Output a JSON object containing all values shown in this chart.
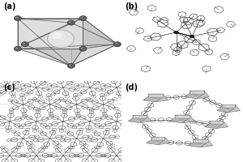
{
  "figure_width": 3.0,
  "figure_height": 2.0,
  "dpi": 100,
  "background_color": "#ffffff",
  "panel_labels": [
    "(a)",
    "(b)",
    "(c)",
    "(d)"
  ],
  "panel_label_fontsize": 7,
  "panel_label_bold": true,
  "border_color": "#bbbbbb",
  "label_color": "#000000",
  "node_color_dark": "#606060",
  "node_color_light": "#d0d0d0",
  "face_color_light": "#dedede",
  "face_color_mid": "#c8c8c8",
  "face_color_dark": "#b0b0b0",
  "line_color": "#555555",
  "sphere_color": "#e0e0e0",
  "dashed_color": "#888888"
}
